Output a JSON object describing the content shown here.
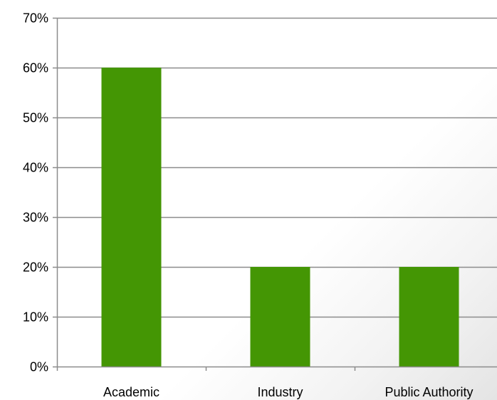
{
  "chart_data": {
    "type": "bar",
    "title": "",
    "xlabel": "",
    "ylabel": "",
    "categories": [
      "Academic",
      "Industry",
      "Public Authority"
    ],
    "series": [
      {
        "values": [
          60,
          20,
          20
        ]
      }
    ],
    "ylim": [
      0,
      70
    ],
    "yticks": [
      0,
      10,
      20,
      30,
      40,
      50,
      60,
      70
    ],
    "ytick_format": "percent",
    "grid": true,
    "legend": "none",
    "colors": {
      "bar": "#449604",
      "grid": "#8c8c8c",
      "axis": "#8c8c8c"
    }
  }
}
